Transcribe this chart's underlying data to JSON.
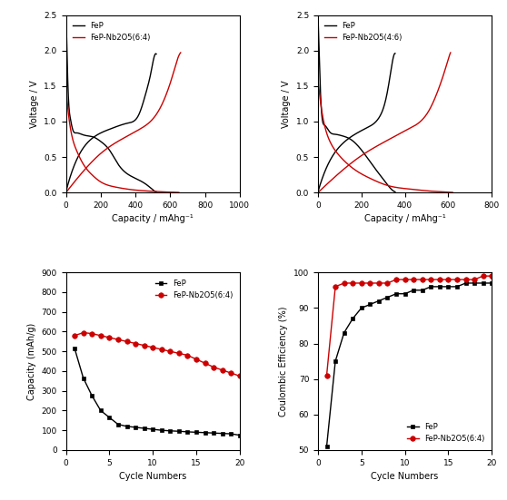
{
  "ax1": {
    "xlabel": "Capacity / mAhg⁻¹",
    "ylabel": "Voltage / V",
    "xlim": [
      0,
      1000
    ],
    "ylim": [
      0,
      2.5
    ],
    "xticks": [
      0,
      200,
      400,
      600,
      800,
      1000
    ],
    "yticks": [
      0.0,
      0.5,
      1.0,
      1.5,
      2.0,
      2.5
    ],
    "legend1": "FeP",
    "legend2": "FeP-Nb2O5(6:4)"
  },
  "ax2": {
    "xlabel": "Capacity / mAhg⁻¹",
    "ylabel": "Voltage / V",
    "xlim": [
      0,
      800
    ],
    "ylim": [
      0,
      2.5
    ],
    "xticks": [
      0,
      200,
      400,
      600,
      800
    ],
    "yticks": [
      0.0,
      0.5,
      1.0,
      1.5,
      2.0,
      2.5
    ],
    "legend1": "FeP",
    "legend2": "FeP-Nb2O5(4:6)"
  },
  "ax3": {
    "xlabel": "Cycle Numbers",
    "ylabel": "Capacity (mAh/g)",
    "xlim": [
      0,
      20
    ],
    "ylim": [
      0,
      900
    ],
    "xticks": [
      0,
      5,
      10,
      15,
      20
    ],
    "yticks": [
      0,
      100,
      200,
      300,
      400,
      500,
      600,
      700,
      800,
      900
    ],
    "legend1": "FeP",
    "legend2": "FeP-Nb2O5(6:4)",
    "fep_cycles": [
      1,
      2,
      3,
      4,
      5,
      6,
      7,
      8,
      9,
      10,
      11,
      12,
      13,
      14,
      15,
      16,
      17,
      18,
      19,
      20
    ],
    "fep_cap": [
      515,
      365,
      275,
      200,
      165,
      130,
      120,
      115,
      110,
      105,
      100,
      97,
      95,
      92,
      90,
      88,
      86,
      84,
      82,
      75
    ],
    "comp_cycles": [
      1,
      2,
      3,
      4,
      5,
      6,
      7,
      8,
      9,
      10,
      11,
      12,
      13,
      14,
      15,
      16,
      17,
      18,
      19,
      20
    ],
    "comp_cap": [
      580,
      595,
      590,
      580,
      570,
      560,
      550,
      540,
      530,
      520,
      510,
      500,
      490,
      480,
      460,
      440,
      420,
      405,
      390,
      375
    ]
  },
  "ax4": {
    "xlabel": "Cycle Numbers",
    "ylabel": "Coulombic Efficiency (%)",
    "xlim": [
      0,
      20
    ],
    "ylim": [
      50,
      100
    ],
    "xticks": [
      0,
      5,
      10,
      15,
      20
    ],
    "yticks": [
      50,
      60,
      70,
      80,
      90,
      100
    ],
    "legend1": "FeP",
    "legend2": "FeP-Nb2O5(6:4)",
    "fep_cycles": [
      1,
      2,
      3,
      4,
      5,
      6,
      7,
      8,
      9,
      10,
      11,
      12,
      13,
      14,
      15,
      16,
      17,
      18,
      19,
      20
    ],
    "fep_eff": [
      51,
      75,
      83,
      87,
      90,
      91,
      92,
      93,
      94,
      94,
      95,
      95,
      96,
      96,
      96,
      96,
      97,
      97,
      97,
      97
    ],
    "comp_cycles": [
      1,
      2,
      3,
      4,
      5,
      6,
      7,
      8,
      9,
      10,
      11,
      12,
      13,
      14,
      15,
      16,
      17,
      18,
      19,
      20
    ],
    "comp_eff": [
      71,
      96,
      97,
      97,
      97,
      97,
      97,
      97,
      98,
      98,
      98,
      98,
      98,
      98,
      98,
      98,
      98,
      98,
      99,
      99
    ]
  },
  "colors": {
    "black": "#000000",
    "red": "#CC0000"
  }
}
